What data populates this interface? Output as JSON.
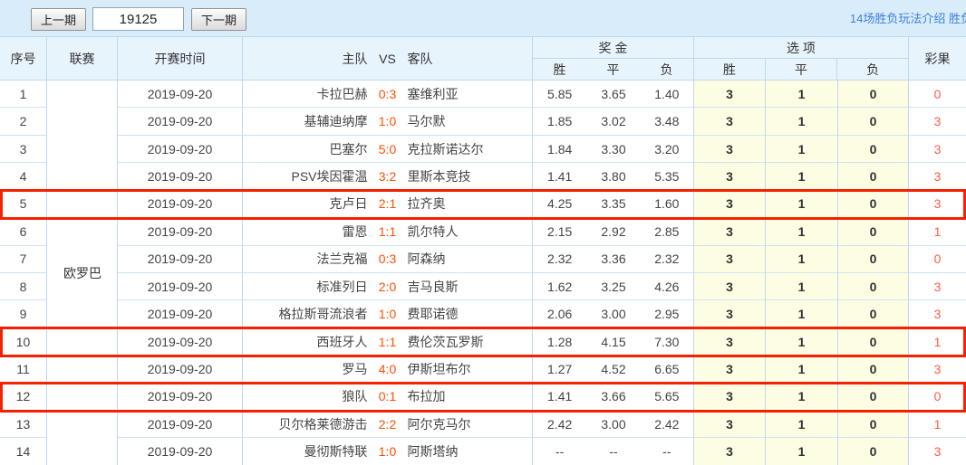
{
  "toolbar": {
    "prev_button": "上一期",
    "period_input": "19125",
    "next_button": "下一期",
    "help_link": "14场胜负玩法介绍 胜负"
  },
  "table": {
    "headers": {
      "seq": "序号",
      "league": "联赛",
      "time": "开赛时间",
      "home": "主队",
      "vs": "VS",
      "away": "客队",
      "odds_group": "奖 金",
      "options_group": "选 项",
      "odds_cols": [
        "胜",
        "平",
        "负"
      ],
      "option_cols": [
        "胜",
        "平",
        "负"
      ],
      "result": "彩果"
    },
    "league_name": "欧罗巴",
    "rows": [
      {
        "seq": "1",
        "date": "2019-09-20",
        "home": "卡拉巴赫",
        "score": "0:3",
        "away": "塞维利亚",
        "odds": [
          "5.85",
          "3.65",
          "1.40"
        ],
        "options": [
          "3",
          "1",
          "0"
        ],
        "result": "0",
        "highlighted": false
      },
      {
        "seq": "2",
        "date": "2019-09-20",
        "home": "基辅迪纳摩",
        "score": "1:0",
        "away": "马尔默",
        "odds": [
          "1.85",
          "3.02",
          "3.48"
        ],
        "options": [
          "3",
          "1",
          "0"
        ],
        "result": "3",
        "highlighted": false
      },
      {
        "seq": "3",
        "date": "2019-09-20",
        "home": "巴塞尔",
        "score": "5:0",
        "away": "克拉斯诺达尔",
        "odds": [
          "1.84",
          "3.30",
          "3.20"
        ],
        "options": [
          "3",
          "1",
          "0"
        ],
        "result": "3",
        "highlighted": false
      },
      {
        "seq": "4",
        "date": "2019-09-20",
        "home": "PSV埃因霍温",
        "score": "3:2",
        "away": "里斯本竞技",
        "odds": [
          "1.41",
          "3.80",
          "5.35"
        ],
        "options": [
          "3",
          "1",
          "0"
        ],
        "result": "3",
        "highlighted": false
      },
      {
        "seq": "5",
        "date": "2019-09-20",
        "home": "克卢日",
        "score": "2:1",
        "away": "拉齐奥",
        "odds": [
          "4.25",
          "3.35",
          "1.60"
        ],
        "options": [
          "3",
          "1",
          "0"
        ],
        "result": "3",
        "highlighted": true
      },
      {
        "seq": "6",
        "date": "2019-09-20",
        "home": "雷恩",
        "score": "1:1",
        "away": "凯尔特人",
        "odds": [
          "2.15",
          "2.92",
          "2.85"
        ],
        "options": [
          "3",
          "1",
          "0"
        ],
        "result": "1",
        "highlighted": false
      },
      {
        "seq": "7",
        "date": "2019-09-20",
        "home": "法兰克福",
        "score": "0:3",
        "away": "阿森纳",
        "odds": [
          "2.32",
          "3.36",
          "2.32"
        ],
        "options": [
          "3",
          "1",
          "0"
        ],
        "result": "0",
        "highlighted": false
      },
      {
        "seq": "8",
        "date": "2019-09-20",
        "home": "标准列日",
        "score": "2:0",
        "away": "吉马良斯",
        "odds": [
          "1.62",
          "3.25",
          "4.26"
        ],
        "options": [
          "3",
          "1",
          "0"
        ],
        "result": "3",
        "highlighted": false
      },
      {
        "seq": "9",
        "date": "2019-09-20",
        "home": "格拉斯哥流浪者",
        "score": "1:0",
        "away": "费耶诺德",
        "odds": [
          "2.06",
          "3.00",
          "2.95"
        ],
        "options": [
          "3",
          "1",
          "0"
        ],
        "result": "3",
        "highlighted": false
      },
      {
        "seq": "10",
        "date": "2019-09-20",
        "home": "西班牙人",
        "score": "1:1",
        "away": "费伦茨瓦罗斯",
        "odds": [
          "1.28",
          "4.15",
          "7.30"
        ],
        "options": [
          "3",
          "1",
          "0"
        ],
        "result": "1",
        "highlighted": true
      },
      {
        "seq": "11",
        "date": "2019-09-20",
        "home": "罗马",
        "score": "4:0",
        "away": "伊斯坦布尔",
        "odds": [
          "1.27",
          "4.52",
          "6.65"
        ],
        "options": [
          "3",
          "1",
          "0"
        ],
        "result": "3",
        "highlighted": false
      },
      {
        "seq": "12",
        "date": "2019-09-20",
        "home": "狼队",
        "score": "0:1",
        "away": "布拉加",
        "odds": [
          "1.41",
          "3.66",
          "5.65"
        ],
        "options": [
          "3",
          "1",
          "0"
        ],
        "result": "0",
        "highlighted": true
      },
      {
        "seq": "13",
        "date": "2019-09-20",
        "home": "贝尔格莱德游击",
        "score": "2:2",
        "away": "阿尔克马尔",
        "odds": [
          "2.42",
          "3.00",
          "2.42"
        ],
        "options": [
          "3",
          "1",
          "0"
        ],
        "result": "1",
        "highlighted": false
      },
      {
        "seq": "14",
        "date": "2019-09-20",
        "home": "曼彻斯特联",
        "score": "1:0",
        "away": "阿斯塔纳",
        "odds": [
          "--",
          "--",
          "--"
        ],
        "options": [
          "3",
          "1",
          "0"
        ],
        "result": "3",
        "highlighted": false
      }
    ]
  },
  "colors": {
    "topbar_bg": "#d8ecfa",
    "header_bg": "#e8f4fc",
    "grid_border": "#bdd9ec",
    "option_cell_bg": "#fdfde4",
    "score_text": "#ff4e00",
    "result_text": "#ff5c40",
    "highlight_border": "#f52000",
    "link_blue": "#3f80d9"
  }
}
